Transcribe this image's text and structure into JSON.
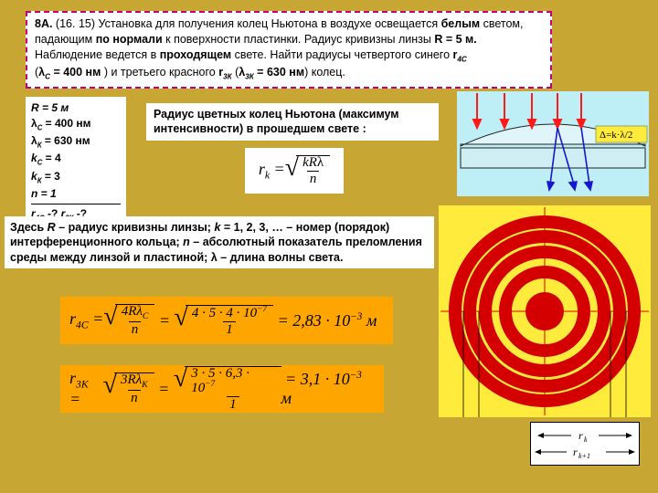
{
  "problem": {
    "line1a": "8А.",
    "line1b": " (16. 15) Установка для получения колец Ньютона в воздухе освещается ",
    "line1c": "белым",
    "line1d": " светом,",
    "line2a": "падающим ",
    "line2b": "по нормали",
    "line2c": " к поверхности пластинки. Радиус кривизны линзы ",
    "line2d": "R = 5 м.",
    "line3a": "Наблюдение ведется в ",
    "line3b": "проходящем",
    "line3c": " свете. Найти радиусы четвертого синего ",
    "line3d": "r",
    "line3e": "4С",
    "line4a": "(",
    "line4b": "λ",
    "line4c": "С",
    "line4d": " = 400 нм",
    "line4e": " ) и третьего красного ",
    "line4f": "r",
    "line4g": "3К",
    "line4h": " (",
    "line4i": "λ",
    "line4j": "3К",
    "line4k": " = 630 нм",
    "line4l": ") колец."
  },
  "given": {
    "r": "R = 5 м",
    "lc_a": "λ",
    "lc_sub": "С",
    "lc_b": " = 400 нм",
    "lk_a": "λ",
    "lk_sub": "К",
    "lk_b": " = 630 нм",
    "kc": "k",
    "kc_sub": "С",
    "kc_b": " = 4",
    "kk": "k",
    "kk_sub": "К",
    "kk_b": " = 3",
    "n": "n = 1",
    "q1a": "r",
    "q1sub": "4С",
    "q1b": " -? ",
    "q2a": "r",
    "q2sub": "3К",
    "q2b": " -?"
  },
  "intro": "Радиус цветных колец Ньютона (максимум интенсивности) в прошедшем свете :",
  "formula": {
    "lhs": "r",
    "lhs_sub": "k",
    "num1": "kR",
    "num2": "λ",
    "den": "n"
  },
  "explain": {
    "t1": "Здесь ",
    "t2": "R",
    "t3": " – радиус кривизны линзы; ",
    "t4": "k",
    "t5": " = 1, 2, 3, … – номер (порядок) интерференционного кольца; ",
    "t6": "n",
    "t7": " – абсолютный показатель преломления среды между линзой и пластиной; ",
    "t8": "λ",
    "t9": " – длина волны света."
  },
  "calc1": {
    "lhs": "r",
    "lhs_sub": "4С",
    "a_num": "4R",
    "a_lam": "λ",
    "a_lam_sub": "С",
    "a_den": "n",
    "b_num": "4 · 5 · 4 · 10",
    "b_exp": "−7",
    "b_den": "1",
    "rhs": "= 2,83 · 10",
    "rhs_exp": "−3",
    "unit": " м"
  },
  "calc2": {
    "lhs": "r",
    "lhs_sub": "3К",
    "a_num": "3R",
    "a_lam": "λ",
    "a_lam_sub": "К",
    "a_den": "n",
    "b_num": "3 · 5 · 6,3 · 10",
    "b_exp": "−7",
    "b_den": "1",
    "rhs": "= 3,1 · 10",
    "rhs_exp": "−3",
    "unit": " м"
  },
  "lens": {
    "delta_label": "Δ=k·λ/2",
    "colors": {
      "bg": "#bfeff6",
      "lens_fill": "#e0f5fa",
      "plate_fill": "#cfeef4",
      "arrow_down": "#ff1a1a",
      "ray_blue": "#1717cf",
      "stroke": "#222"
    }
  },
  "rings": {
    "bg": "#ffeb3b",
    "ring_color": "#d40000",
    "crosshair": "#d40000",
    "ring_radii_outer": [
      105,
      89,
      72,
      50,
      21
    ],
    "ring_widths": [
      14,
      14,
      14,
      14,
      21
    ],
    "rk_label": "r",
    "rk_sub": "k",
    "rk1_label": "r",
    "rk1_sub": "k+1"
  },
  "aspect": "720x540"
}
